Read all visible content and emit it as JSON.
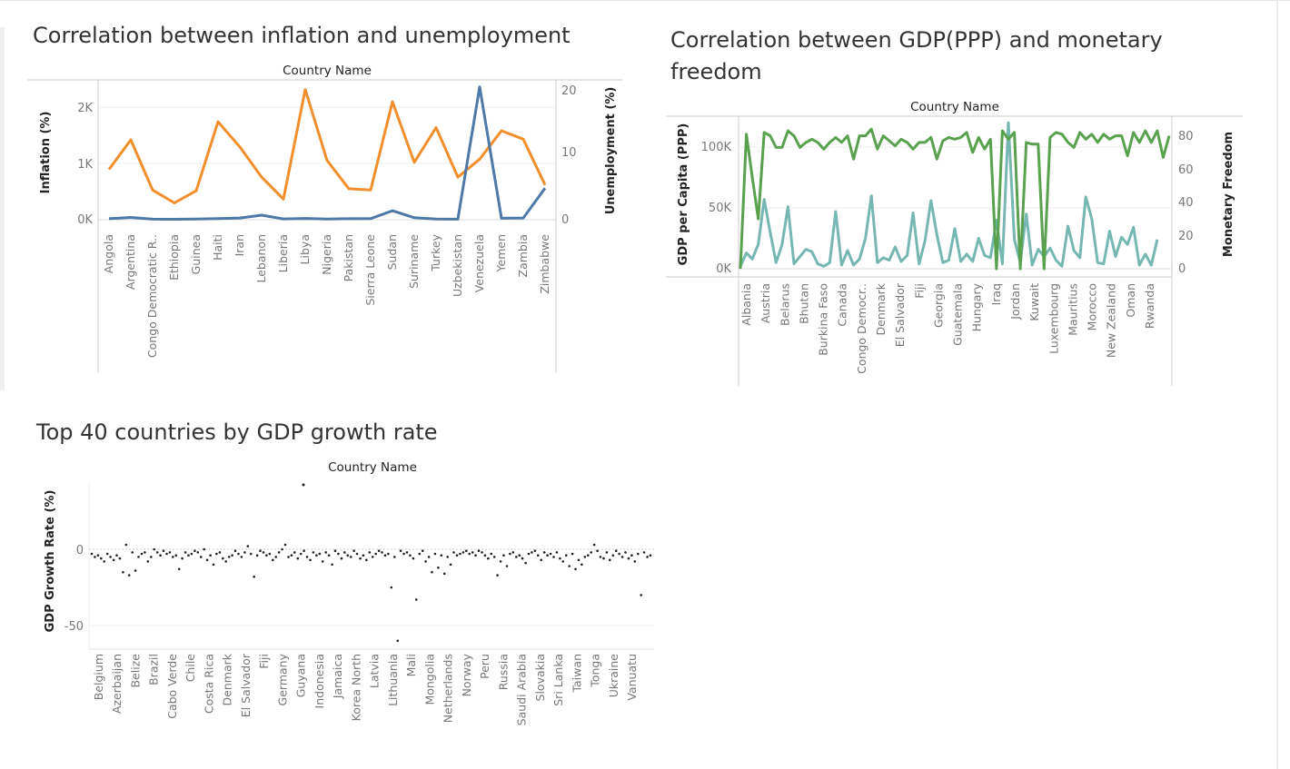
{
  "charts": {
    "chart1": {
      "title": "Correlation between inflation and unemployment",
      "header": "Country Name",
      "ylabel_left": "Inflation (%)",
      "ylabel_right": "Unemployment (%)",
      "left_ticks": [
        "0K",
        "1K",
        "2K"
      ],
      "right_ticks": [
        "0",
        "10",
        "20"
      ]
    },
    "chart2": {
      "title_line1": "Correlation between GDP(PPP) and monetary",
      "title_line2": "freedom",
      "header": "Country Name",
      "ylabel_left": "GDP per Capita (PPP)",
      "ylabel_right": "Monetary Freedom",
      "left_ticks": [
        "0K",
        "50K",
        "100K"
      ],
      "right_ticks": [
        "0",
        "20",
        "40",
        "60",
        "80"
      ]
    },
    "chart3": {
      "title": "Top 40 countries by GDP growth rate",
      "header": "Country Name",
      "ylabel": "GDP Growth Rate (%)",
      "y_ticks": [
        "0",
        "-50"
      ]
    }
  },
  "chart_data": [
    {
      "type": "line",
      "title": "Correlation between inflation and unemployment",
      "xlabel": "Country Name",
      "categories": [
        "Angola",
        "Argentina",
        "Congo Democratic R..",
        "Ethiopia",
        "Guinea",
        "Haiti",
        "Iran",
        "Lebanon",
        "Liberia",
        "Libya",
        "Nigeria",
        "Pakistan",
        "Sierra Leone",
        "Sudan",
        "Suriname",
        "Turkey",
        "Uzbekistan",
        "Venezuela",
        "Yemen",
        "Zambia",
        "Zimbabwe"
      ],
      "series": [
        {
          "axis": "left",
          "ylabel": "Inflation (%)",
          "color": "#4e79a7",
          "ylim": [
            0,
            2700
          ],
          "values": [
            18,
            40,
            10,
            8,
            12,
            20,
            30,
            80,
            15,
            22,
            12,
            18,
            20,
            160,
            35,
            12,
            10,
            2360,
            25,
            30,
            560
          ]
        },
        {
          "axis": "right",
          "ylabel": "Unemployment (%)",
          "color": "#f28e2b",
          "ylim": [
            0,
            22
          ],
          "values": [
            7.8,
            12.4,
            4.6,
            2.6,
            4.5,
            15.2,
            11.3,
            6.6,
            3.2,
            20.2,
            9.2,
            4.8,
            4.6,
            18.3,
            8.9,
            14.3,
            6.6,
            9.4,
            13.8,
            12.5,
            5.4
          ]
        }
      ]
    },
    {
      "type": "line",
      "title": "Correlation between GDP(PPP) and monetary freedom",
      "xlabel": "Country Name",
      "categories_labeled": [
        "Albania",
        "Austria",
        "Belarus",
        "Bhutan",
        "Burkina Faso",
        "Canada",
        "Congo Democr..",
        "Denmark",
        "El Salvador",
        "Fiji",
        "Georgia",
        "Guatemala",
        "Hungary",
        "Iraq",
        "Jordan",
        "Kuwait",
        "Luxembourg",
        "Mauritius",
        "Morocco",
        "New Zealand",
        "Oman",
        "Rwanda"
      ],
      "series": [
        {
          "axis": "right",
          "ylabel": "Monetary Freedom",
          "color": "#59a14f",
          "ylim": [
            0,
            95
          ],
          "values": [
            0,
            81,
            55,
            30,
            82,
            80,
            73,
            73,
            83,
            80,
            73,
            76,
            78,
            76,
            72,
            76,
            79,
            76,
            80,
            66,
            80,
            80,
            84,
            72,
            80,
            77,
            74,
            78,
            76,
            72,
            76,
            76,
            79,
            66,
            77,
            79,
            78,
            79,
            82,
            70,
            79,
            72,
            78,
            0,
            83,
            78,
            82,
            0,
            76,
            75,
            75,
            0,
            79,
            82,
            81,
            76,
            73,
            82,
            78,
            81,
            76,
            81,
            78,
            80,
            80,
            68,
            82,
            76,
            83,
            76,
            83,
            67,
            80
          ]
        },
        {
          "axis": "left",
          "ylabel": "GDP per Capita (PPP)",
          "color": "#76b7b2",
          "ylim": [
            0,
            125000
          ],
          "values": [
            2000,
            13000,
            8000,
            20000,
            57000,
            30000,
            5000,
            20000,
            51000,
            4000,
            10000,
            16000,
            14000,
            4000,
            2000,
            5000,
            47000,
            3000,
            15000,
            3000,
            8000,
            25000,
            60000,
            5000,
            9000,
            7000,
            18000,
            6000,
            11000,
            46000,
            4000,
            23000,
            56000,
            28000,
            5000,
            7000,
            33000,
            6000,
            12000,
            6000,
            25000,
            11000,
            9000,
            40000,
            4000,
            120000,
            24000,
            5000,
            45000,
            3000,
            16000,
            10000,
            17000,
            7000,
            2000,
            35000,
            15000,
            9000,
            59000,
            41000,
            5000,
            4000,
            31000,
            10000,
            26000,
            20000,
            34000,
            3000,
            12000,
            3000,
            24000
          ]
        }
      ]
    },
    {
      "type": "scatter",
      "title": "Top 40 countries by GDP growth rate",
      "xlabel": "Country Name",
      "ylabel": "GDP Growth Rate (%)",
      "ylim": [
        -65,
        45
      ],
      "categories_labeled": [
        "Belgium",
        "Azerbaijan",
        "Belize",
        "Brazil",
        "Cabo Verde",
        "Chile",
        "Costa Rica",
        "Denmark",
        "El Salvador",
        "Fiji",
        "Germany",
        "Guyana",
        "Indonesia",
        "Jamaica",
        "Korea North",
        "Latvia",
        "Lithuania",
        "Mali",
        "Mongolia",
        "Netherlands",
        "Norway",
        "Peru",
        "Russia",
        "Saudi Arabia",
        "Slovakia",
        "Sri Lanka",
        "Taiwan",
        "Tonga",
        "Ukraine",
        "Vanuatu"
      ],
      "values": [
        -3,
        -5,
        -4,
        -6,
        -8,
        -3,
        -5,
        -7,
        -4,
        -6,
        -15,
        3,
        -17,
        -2,
        -14,
        -5,
        -3,
        -2,
        -8,
        -5,
        0,
        -2,
        -4,
        -1,
        -3,
        -2,
        -5,
        -4,
        -13,
        -6,
        -2,
        -4,
        -3,
        -1,
        -2,
        -5,
        0,
        -7,
        -4,
        -10,
        -3,
        -2,
        -6,
        -8,
        -5,
        -4,
        -1,
        -3,
        -5,
        -2,
        2,
        -3,
        -18,
        -4,
        -1,
        -2,
        -4,
        -3,
        -7,
        -5,
        -2,
        0,
        3,
        -5,
        -4,
        -2,
        -6,
        -3,
        -1,
        -5,
        -7,
        -2,
        -4,
        -3,
        -8,
        -2,
        -4,
        -10,
        -1,
        -3,
        -6,
        -2,
        -4,
        -5,
        -1,
        -3,
        -6,
        -4,
        -7,
        -2,
        -5,
        -3,
        -1,
        -2,
        -4,
        -3,
        -25,
        -5,
        -60,
        -1,
        -3,
        -2,
        -4,
        -6,
        -33,
        -3,
        -1,
        -8,
        -5,
        -15,
        -3,
        -12,
        -4,
        -16,
        -5,
        -10,
        -2,
        -4,
        -3,
        -2,
        -1,
        -3,
        -2,
        -4,
        -1,
        -2,
        -4,
        -6,
        -3,
        -5,
        -17,
        -8,
        -4,
        -11,
        -3,
        -2,
        -5,
        -4,
        -6,
        -9,
        -3,
        -2,
        -1,
        -4,
        -7,
        -2,
        -4,
        -3,
        -5,
        -2,
        -6,
        -8,
        -4,
        -11,
        -3,
        -13,
        -7,
        -10,
        -5,
        -4,
        -2,
        3,
        -1,
        -5,
        -6,
        -2,
        -7,
        -4,
        -1,
        -3,
        -5,
        -2,
        -6,
        -4,
        -8,
        -3,
        -30,
        -2,
        -5,
        -4
      ]
    }
  ]
}
